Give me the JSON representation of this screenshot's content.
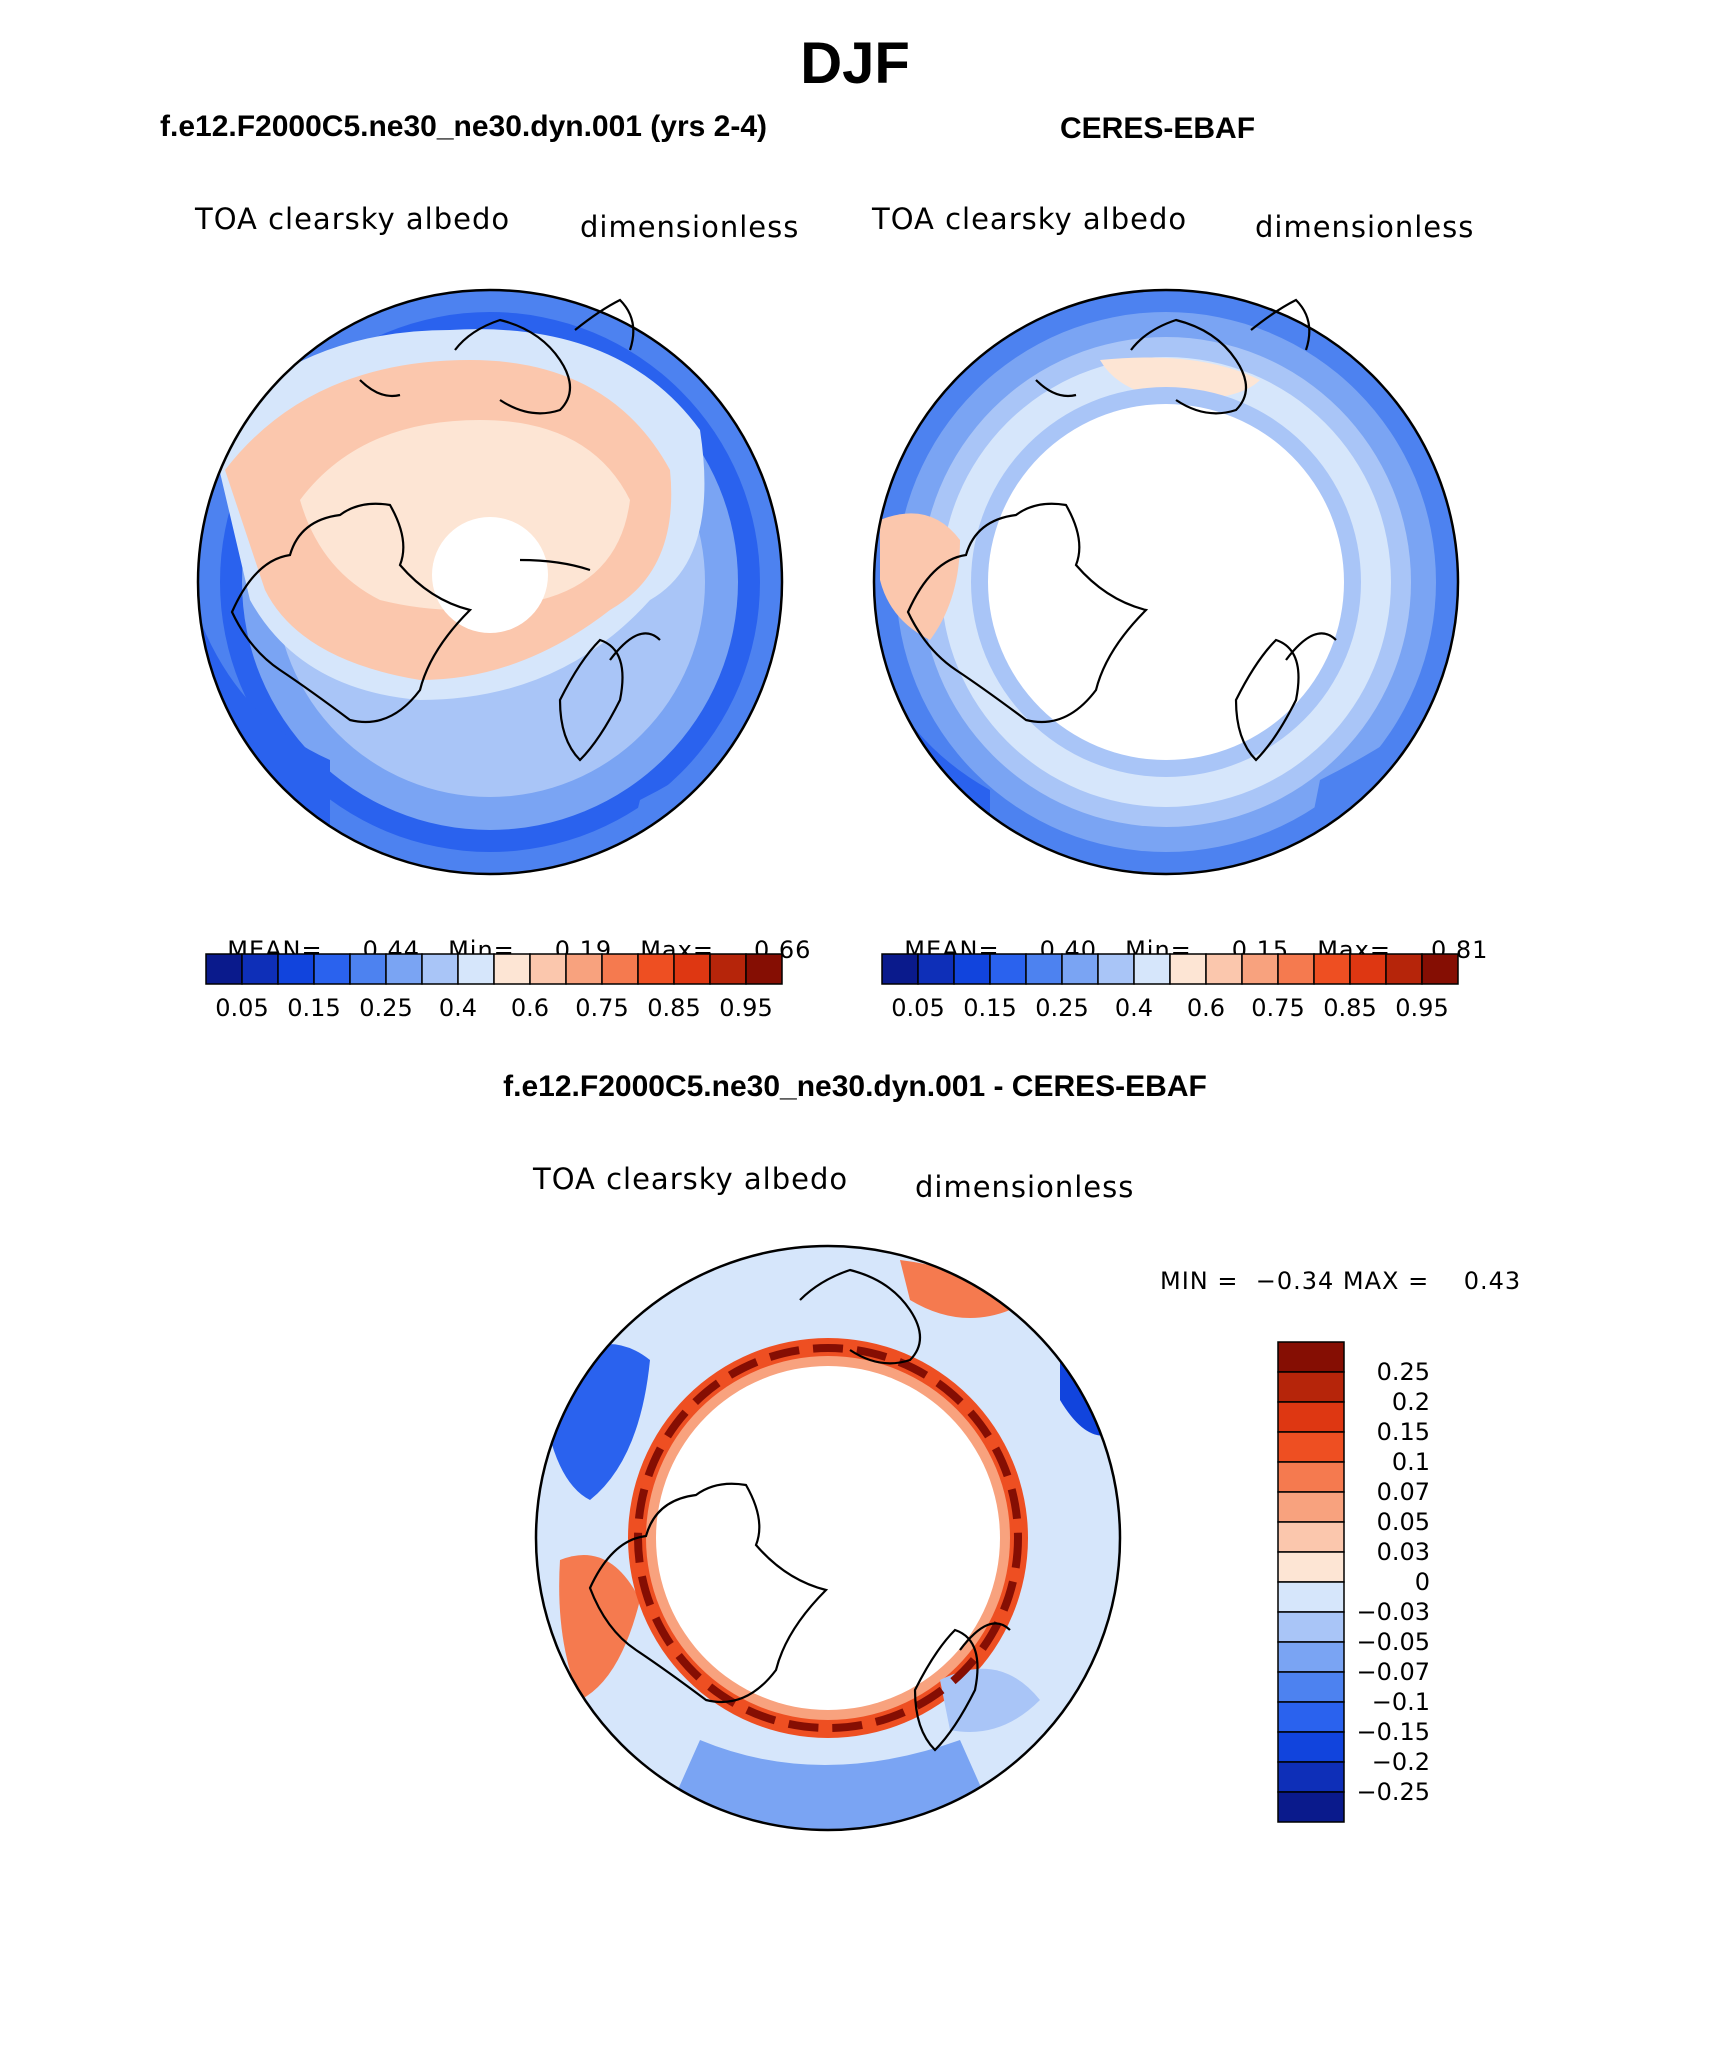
{
  "figure": {
    "title": "DJF",
    "panels": [
      {
        "id": "model",
        "subtitle": "f.e12.F2000C5.ne30_ne30.dyn.001 (yrs 2-4)",
        "left_label": "TOA clearsky albedo",
        "right_label": "dimensionless",
        "stats": {
          "mean_label": "MEAN=",
          "mean": "0.44",
          "min_label": "Min=",
          "min": "0.19",
          "max_label": "Max=",
          "max": "0.66"
        }
      },
      {
        "id": "obs",
        "subtitle": "CERES-EBAF",
        "left_label": "TOA clearsky albedo",
        "right_label": "dimensionless",
        "stats": {
          "mean_label": "MEAN=",
          "mean": "0.40",
          "min_label": "Min=",
          "min": "0.15",
          "max_label": "Max=",
          "max": "0.81"
        }
      },
      {
        "id": "diff",
        "subtitle": "f.e12.F2000C5.ne30_ne30.dyn.001 - CERES-EBAF",
        "left_label": "TOA clearsky albedo",
        "right_label": "dimensionless",
        "stats_text": "MIN =  −0.34 MAX =    0.43"
      }
    ]
  },
  "colorbars": {
    "abs": {
      "colors": [
        "#0a1a8c",
        "#0e2fb8",
        "#1144dd",
        "#2a62ee",
        "#4d82f0",
        "#7aa4f3",
        "#a9c5f7",
        "#d6e6fb",
        "#fde5d4",
        "#fbc7ad",
        "#f8a27e",
        "#f57a4f",
        "#ee4f22",
        "#de3712",
        "#b6250a",
        "#850e03"
      ],
      "tick_labels": [
        "0.05",
        "0.15",
        "0.25",
        "0.4",
        "0.6",
        "0.75",
        "0.85",
        "0.95"
      ]
    },
    "diff": {
      "colors": [
        "#850e03",
        "#b6250a",
        "#de3712",
        "#ee4f22",
        "#f57a4f",
        "#f8a27e",
        "#fbc7ad",
        "#fde5d4",
        "#d6e6fb",
        "#a9c5f7",
        "#7aa4f3",
        "#4d82f0",
        "#2a62ee",
        "#1144dd",
        "#0e2fb8",
        "#0a1a8c"
      ],
      "tick_labels": [
        "0.25",
        "0.2",
        "0.15",
        "0.1",
        "0.07",
        "0.05",
        "0.03",
        "0",
        "−0.03",
        "−0.05",
        "−0.07",
        "−0.1",
        "−0.15",
        "−0.2",
        "−0.25"
      ]
    }
  }
}
